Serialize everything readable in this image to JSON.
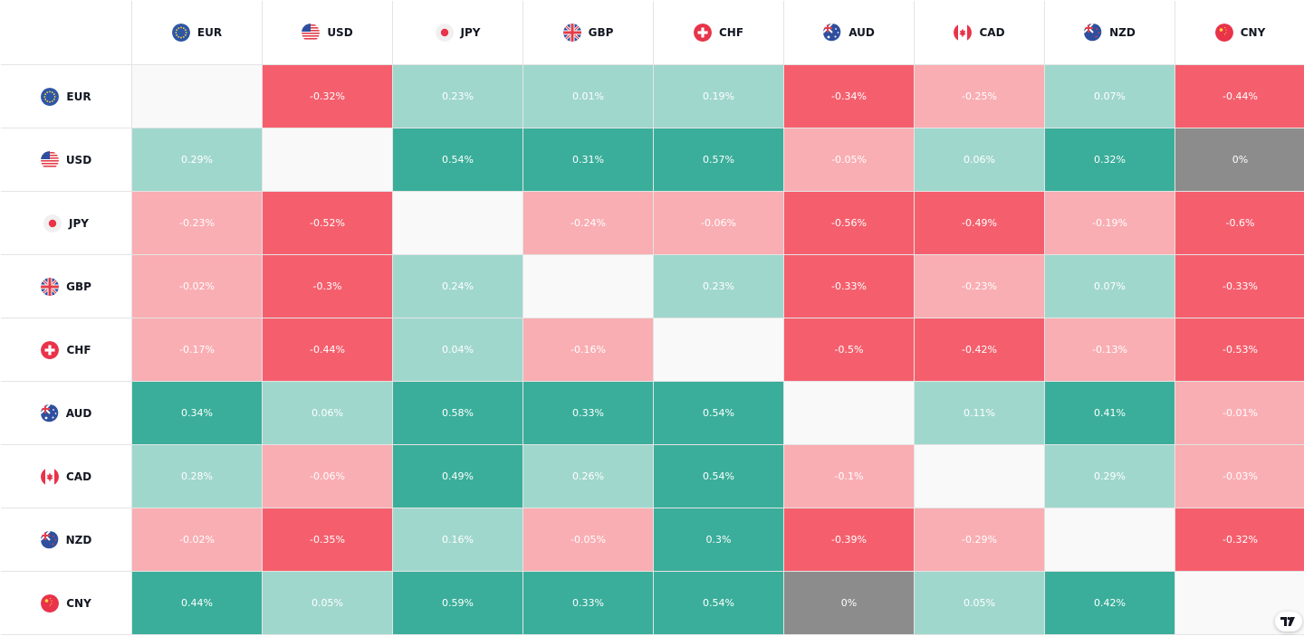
{
  "colors": {
    "strong_pos": "#3aae9a",
    "weak_pos": "#a0d7cd",
    "neutral": "#8c8c8c",
    "weak_neg": "#f9aeb3",
    "strong_neg": "#f55f6d",
    "diagonal": "#f9f9f9"
  },
  "chart_data": {
    "type": "heatmap",
    "title": "",
    "currencies": [
      "EUR",
      "USD",
      "JPY",
      "GBP",
      "CHF",
      "AUD",
      "CAD",
      "NZD",
      "CNY"
    ],
    "flag_icons": [
      "eu-flag-icon",
      "us-flag-icon",
      "jp-flag-icon",
      "gb-flag-icon",
      "ch-flag-icon",
      "au-flag-icon",
      "ca-flag-icon",
      "nz-flag-icon",
      "cn-flag-icon"
    ],
    "value_unit": "%",
    "values": [
      [
        null,
        -0.32,
        0.23,
        0.01,
        0.19,
        -0.34,
        -0.25,
        0.07,
        -0.44
      ],
      [
        0.29,
        null,
        0.54,
        0.31,
        0.57,
        -0.05,
        0.06,
        0.32,
        0
      ],
      [
        -0.23,
        -0.52,
        null,
        -0.24,
        -0.06,
        -0.56,
        -0.49,
        -0.19,
        -0.6
      ],
      [
        -0.02,
        -0.3,
        0.24,
        null,
        0.23,
        -0.33,
        -0.23,
        0.07,
        -0.33
      ],
      [
        -0.17,
        -0.44,
        0.04,
        -0.16,
        null,
        -0.5,
        -0.42,
        -0.13,
        -0.53
      ],
      [
        0.34,
        0.06,
        0.58,
        0.33,
        0.54,
        null,
        0.11,
        0.41,
        -0.01
      ],
      [
        0.28,
        -0.06,
        0.49,
        0.26,
        0.54,
        -0.1,
        null,
        0.29,
        -0.03
      ],
      [
        -0.02,
        -0.35,
        0.16,
        -0.05,
        0.3,
        -0.39,
        -0.29,
        null,
        -0.32
      ],
      [
        0.44,
        0.05,
        0.59,
        0.33,
        0.54,
        0,
        0.05,
        0.42,
        null
      ]
    ]
  }
}
